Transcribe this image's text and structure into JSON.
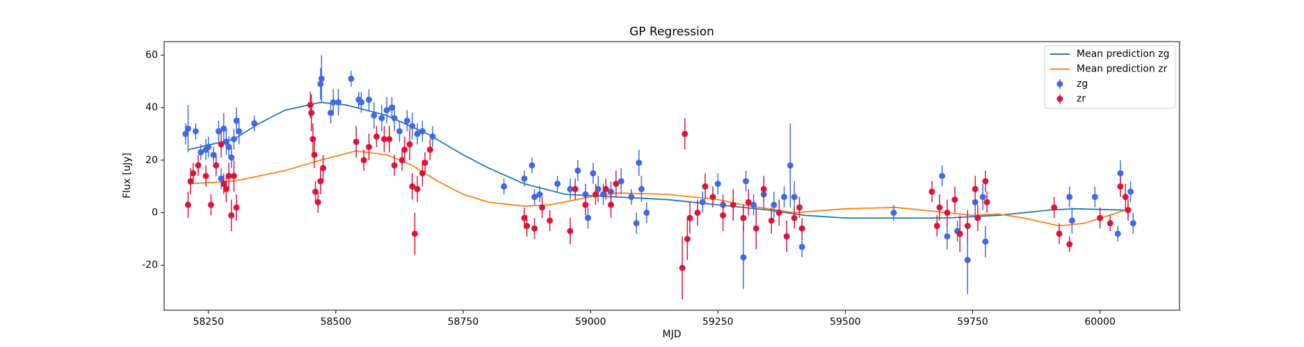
{
  "chart_data": {
    "type": "errorbar",
    "title": "GP Regression",
    "x_label": "MJD",
    "y_label": "Flux [uJy]",
    "xlim": [
      58163,
      60156
    ],
    "ylim": [
      -37.1,
      65.1
    ],
    "xticks": [
      58250,
      58500,
      58750,
      59000,
      59250,
      59500,
      59750,
      60000
    ],
    "yticks": [
      -20,
      0,
      20,
      40,
      60
    ],
    "grid": false,
    "legend": "upper right",
    "series": [
      {
        "name": "Mean prediction zg",
        "type": "line",
        "color": "#1f77b4",
        "x": [
          58210,
          58300,
          58350,
          58400,
          58470,
          58520,
          58600,
          58680,
          58750,
          58800,
          58870,
          58950,
          59050,
          59150,
          59250,
          59350,
          59420,
          59500,
          59600,
          59700,
          59800,
          59900,
          59950,
          60050
        ],
        "values": [
          24,
          28,
          34,
          39,
          42,
          41,
          37,
          30,
          22,
          17,
          11,
          7,
          6,
          5,
          3,
          1,
          -1,
          -2,
          -2,
          -2,
          -1,
          1,
          1.5,
          1
        ]
      },
      {
        "name": "Mean prediction zr",
        "type": "line",
        "color": "#ff7f0e",
        "x": [
          58210,
          58300,
          58400,
          58470,
          58540,
          58600,
          58650,
          58700,
          58750,
          58800,
          58870,
          58920,
          59000,
          59050,
          59150,
          59250,
          59300,
          59350,
          59400,
          59500,
          59600,
          59700,
          59750,
          59800,
          59850,
          59920,
          59970,
          60050
        ],
        "values": [
          11,
          12,
          16,
          20,
          23.5,
          22,
          18,
          12,
          7,
          4,
          2.5,
          3,
          6,
          7.5,
          7,
          5,
          3,
          1.5,
          0,
          1.5,
          2,
          0,
          -1,
          -0.5,
          -2,
          -5,
          -4,
          1
        ]
      },
      {
        "name": "zg",
        "type": "errorbar",
        "color": "#4169e1",
        "x": [
          58205,
          58210,
          58225,
          58235,
          58245,
          58250,
          58260,
          58270,
          58275,
          58280,
          58285,
          58290,
          58295,
          58300,
          58305,
          58310,
          58340,
          58470,
          58472,
          58490,
          58495,
          58505,
          58530,
          58545,
          58550,
          58565,
          58575,
          58590,
          58600,
          58610,
          58615,
          58625,
          58640,
          58650,
          58660,
          58670,
          58690,
          58830,
          58870,
          58885,
          58890,
          58900,
          58935,
          58960,
          58975,
          58990,
          58995,
          59005,
          59015,
          59025,
          59040,
          59060,
          59080,
          59090,
          59095,
          59100,
          59110,
          59220,
          59250,
          59260,
          59300,
          59305,
          59320,
          59340,
          59360,
          59380,
          59392,
          59400,
          59415,
          59595,
          59690,
          59700,
          59720,
          59740,
          59755,
          59770,
          59775,
          59940,
          59945,
          59990,
          60035,
          60040,
          60055,
          60060,
          60065
        ],
        "values": [
          30,
          32,
          31,
          23,
          24,
          25,
          22,
          31,
          13,
          32,
          27,
          25,
          21,
          28,
          35,
          31,
          34,
          49,
          51,
          38,
          42,
          42,
          51,
          43,
          42,
          43,
          37,
          36,
          39,
          40,
          36,
          31,
          35,
          33,
          30,
          31,
          29,
          10,
          13,
          18,
          6,
          7,
          11,
          9,
          16,
          7,
          -2,
          15,
          9,
          7,
          8,
          12,
          6,
          -4,
          19,
          9,
          0,
          4,
          11,
          3,
          -17,
          12,
          3,
          7,
          3,
          6,
          18,
          6,
          -13,
          0,
          14,
          -9,
          -7,
          -18,
          4,
          6,
          -11,
          6,
          -3,
          6,
          -8,
          15,
          1,
          8,
          -4
        ],
        "errors": [
          4,
          9,
          3,
          3,
          4,
          4,
          3,
          4,
          4,
          6,
          5,
          4,
          4,
          4,
          5,
          5,
          3,
          6,
          9,
          4,
          5,
          5,
          3,
          3,
          4,
          4,
          5,
          5,
          5,
          4,
          5,
          4,
          4,
          5,
          4,
          4,
          4,
          3,
          3,
          3,
          3,
          3,
          3,
          4,
          4,
          4,
          4,
          4,
          5,
          4,
          4,
          5,
          3,
          4,
          5,
          5,
          4,
          4,
          4,
          4,
          12,
          4,
          4,
          6,
          5,
          4,
          16,
          6,
          4,
          3,
          4,
          5,
          4,
          13,
          5,
          5,
          6,
          4,
          5,
          4,
          3,
          5,
          3,
          4,
          4
        ]
      },
      {
        "name": "zr",
        "type": "errorbar",
        "color": "#dc143c",
        "x": [
          58210,
          58215,
          58220,
          58230,
          58245,
          58255,
          58265,
          58275,
          58280,
          58285,
          58290,
          58295,
          58300,
          58305,
          58450,
          58452,
          58455,
          58458,
          58460,
          58465,
          58470,
          58475,
          58540,
          58555,
          58565,
          58580,
          58595,
          58605,
          58615,
          58630,
          58635,
          58645,
          58650,
          58655,
          58660,
          58670,
          58675,
          58685,
          58870,
          58875,
          58890,
          58905,
          58920,
          58960,
          58970,
          58990,
          59010,
          59030,
          59040,
          59050,
          59180,
          59185,
          59190,
          59195,
          59210,
          59225,
          59240,
          59260,
          59280,
          59300,
          59310,
          59325,
          59340,
          59355,
          59370,
          59385,
          59400,
          59410,
          59415,
          59670,
          59680,
          59685,
          59700,
          59715,
          59725,
          59740,
          59755,
          59760,
          59775,
          59778,
          59910,
          59920,
          59940,
          60000,
          60020,
          60040,
          60050,
          60055
        ],
        "values": [
          3,
          12,
          15,
          18,
          14,
          3,
          18,
          26,
          11,
          9,
          14,
          -1,
          14,
          2,
          41,
          38,
          28,
          22,
          8,
          4,
          12,
          17,
          27,
          20,
          25,
          29,
          28,
          28,
          18,
          20,
          24,
          26,
          10,
          -8,
          9,
          15,
          19,
          24,
          -2,
          -5,
          -6,
          2,
          -3,
          -7,
          9,
          3,
          7,
          9,
          3,
          11,
          -21,
          30,
          -10,
          -2,
          0,
          10,
          6,
          -1,
          3,
          -2,
          4,
          -6,
          9,
          -3,
          0,
          -9,
          -2,
          2,
          -6,
          8,
          -5,
          2,
          0,
          5,
          -8,
          -5,
          9,
          -2,
          12,
          4,
          2,
          -8,
          -12,
          -2,
          -4,
          10,
          6,
          1
        ],
        "errors": [
          5,
          5,
          4,
          4,
          4,
          4,
          4,
          5,
          4,
          5,
          5,
          6,
          6,
          5,
          5,
          7,
          6,
          5,
          4,
          4,
          5,
          5,
          6,
          4,
          5,
          4,
          5,
          5,
          4,
          4,
          5,
          6,
          5,
          8,
          5,
          5,
          4,
          4,
          4,
          4,
          4,
          4,
          4,
          5,
          4,
          4,
          4,
          4,
          5,
          5,
          12,
          6,
          8,
          6,
          5,
          5,
          4,
          6,
          6,
          5,
          5,
          8,
          5,
          5,
          5,
          6,
          4,
          4,
          4,
          4,
          4,
          5,
          5,
          5,
          7,
          6,
          5,
          5,
          4,
          4,
          4,
          4,
          3,
          4,
          3,
          4,
          5,
          4
        ]
      }
    ]
  }
}
